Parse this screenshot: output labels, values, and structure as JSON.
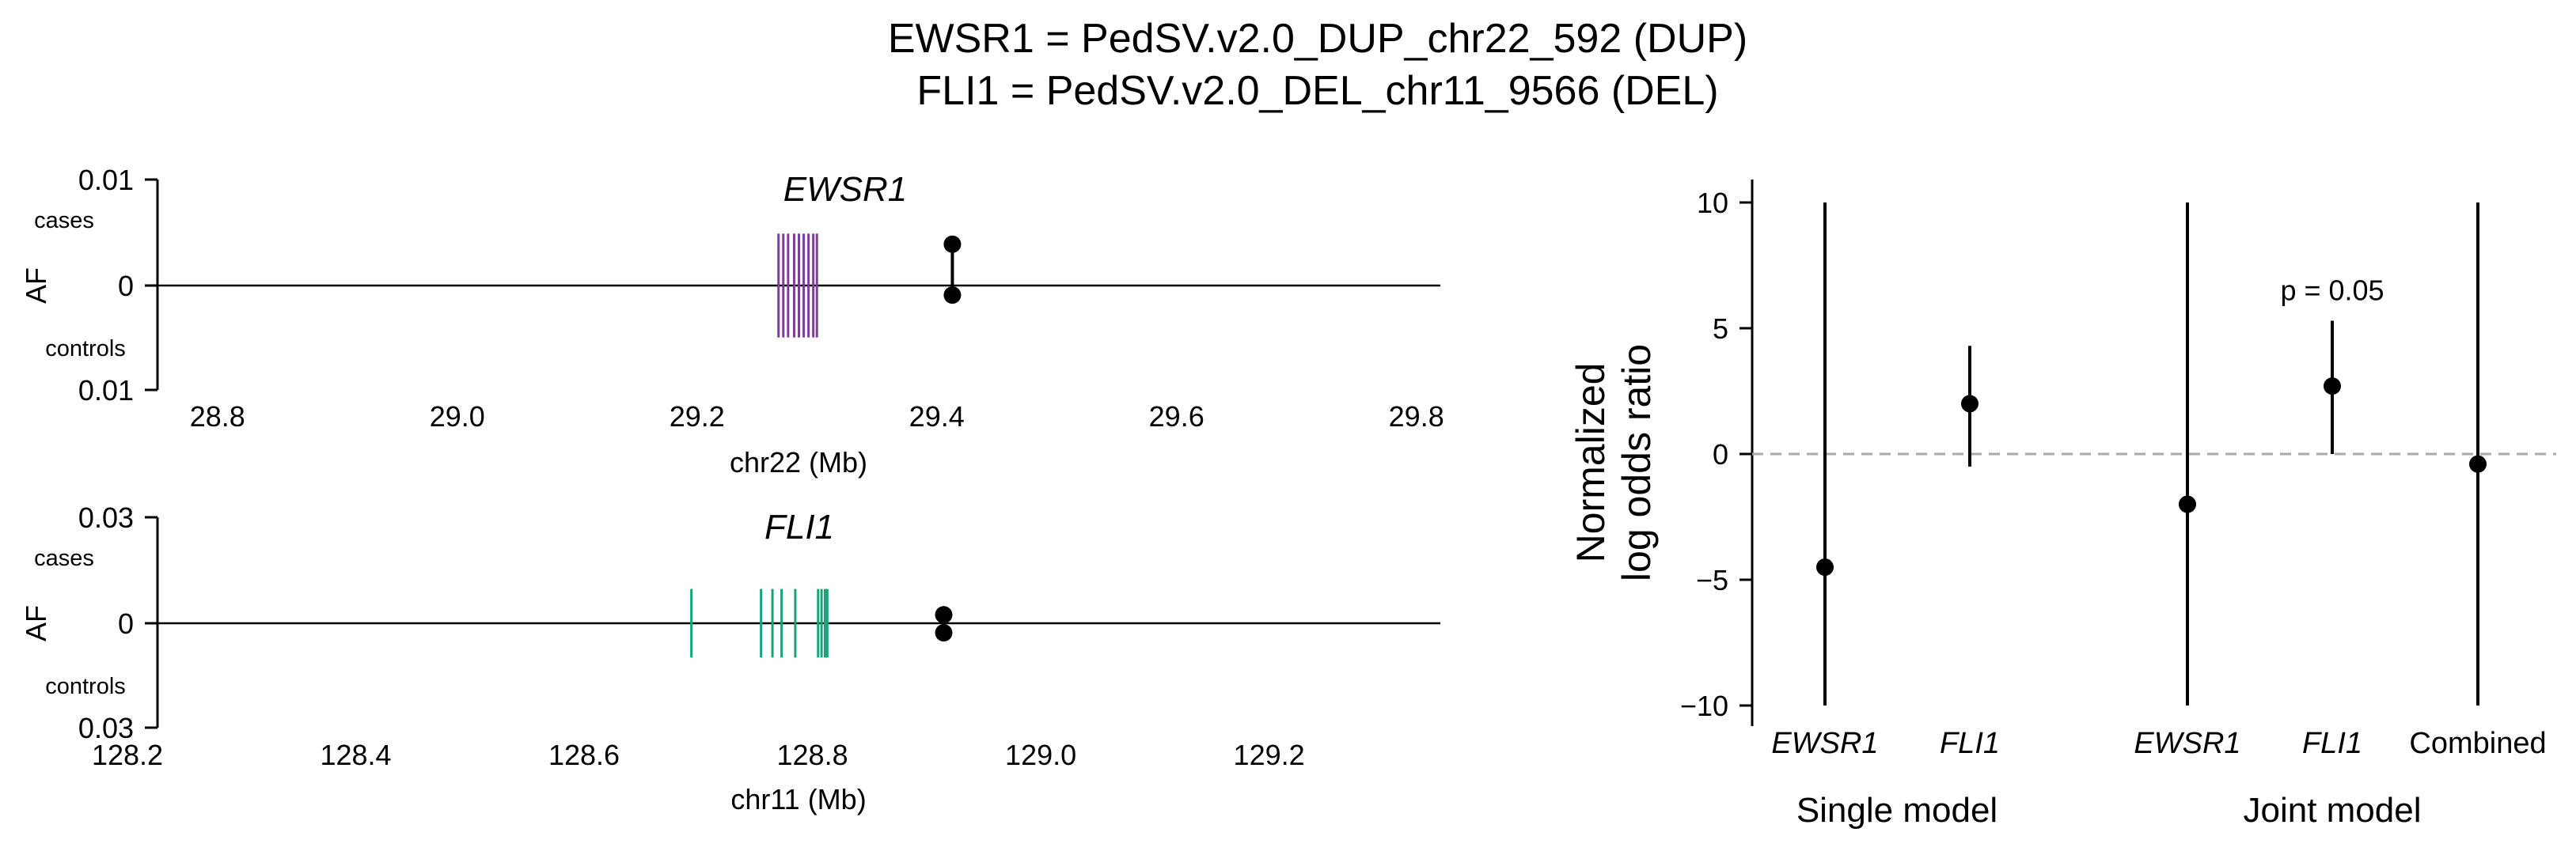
{
  "title_lines": [
    "EWSR1 = PedSV.v2.0_DUP_chr22_592 (DUP)",
    "FLI1 = PedSV.v2.0_DEL_chr11_9566 (DEL)"
  ],
  "colors": {
    "ewsr1_exon": "#7b3f95",
    "fli1_exon": "#14a57a",
    "marker": "#000000",
    "reference_line": "#aaaaaa"
  },
  "chart_data": [
    {
      "type": "locus",
      "gene": "EWSR1",
      "ylabel": "AF",
      "xlabel": "chr22 (Mb)",
      "xlim": [
        28.75,
        29.82
      ],
      "xticks": [
        "28.8",
        "29.0",
        "29.2",
        "29.4",
        "29.6",
        "29.8"
      ],
      "yticks": [
        "0.01",
        "0",
        "0.01"
      ],
      "ylim": [
        -0.01,
        0.01
      ],
      "y_upper_label": "cases",
      "y_lower_label": "controls",
      "exon_color": "#7b3f95",
      "exons_mb": [
        29.268,
        29.272,
        29.276,
        29.281,
        29.285,
        29.289,
        29.293,
        29.297,
        29.3
      ],
      "exon_af_extent": 0.0049,
      "variant": {
        "position_mb": 29.413,
        "af_cases": 0.0039,
        "af_controls": 0.0009
      }
    },
    {
      "type": "locus",
      "gene": "FLI1",
      "ylabel": "AF",
      "xlabel": "chr11 (Mb)",
      "xlim": [
        128.2,
        129.35
      ],
      "xticks": [
        "128.2",
        "128.4",
        "128.6",
        "128.8",
        "129.0",
        "129.2"
      ],
      "yticks": [
        "0.03",
        "0",
        "0.03"
      ],
      "ylim": [
        -0.03,
        0.03
      ],
      "y_upper_label": "cases",
      "y_lower_label": "controls",
      "exon_color": "#14a57a",
      "exons_mb": [
        128.694,
        128.755,
        128.765,
        128.773,
        128.785,
        128.805,
        128.808,
        128.811,
        128.813
      ],
      "exon_af_extent": 0.0097,
      "variant": {
        "position_mb": 128.915,
        "af_cases": 0.0024,
        "af_controls": 0.0027
      }
    },
    {
      "type": "scatter",
      "ylabel": "Normalized\nlog odds ratio",
      "ylim": [
        -11,
        11
      ],
      "yticks": [
        10,
        5,
        0,
        -5,
        -10
      ],
      "ytick_labels": [
        "10",
        "5",
        "0",
        "−5",
        "−10"
      ],
      "reference_y": 0,
      "groups": [
        "Single model",
        "Joint model"
      ],
      "points": [
        {
          "label": "EWSR1",
          "group": "Single model",
          "estimate": -4.5,
          "ci": [
            -10,
            10
          ],
          "italic": true
        },
        {
          "label": "FLI1",
          "group": "Single model",
          "estimate": 2.0,
          "ci": [
            -0.5,
            4.3
          ],
          "italic": true
        },
        {
          "label": "EWSR1",
          "group": "Joint model",
          "estimate": -2.0,
          "ci": [
            -10,
            10
          ],
          "italic": true
        },
        {
          "label": "FLI1",
          "group": "Joint model",
          "estimate": 2.7,
          "ci": [
            0,
            5.3
          ],
          "italic": true,
          "annotation": "p = 0.05"
        },
        {
          "label": "Combined",
          "group": "Joint model",
          "estimate": -0.4,
          "ci": [
            -10,
            10
          ],
          "italic": false
        }
      ]
    }
  ]
}
